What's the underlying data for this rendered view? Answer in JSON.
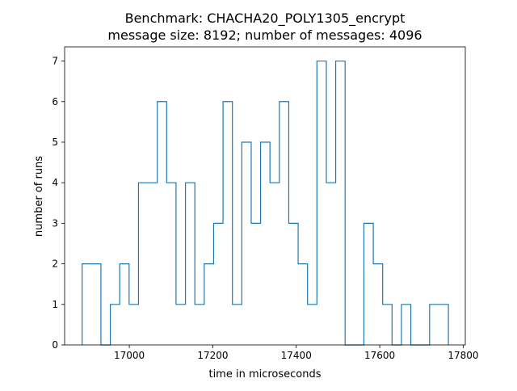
{
  "chart_data": {
    "type": "histogram-step",
    "title_line1": "Benchmark: CHACHA20_POLY1305_encrypt",
    "title_line2": "message size: 8192; number of messages: 4096",
    "xlabel": "time in microseconds",
    "ylabel": "number of runs",
    "xlim": [
      16845,
      17805
    ],
    "ylim": [
      0,
      7.35
    ],
    "xticks": [
      17000,
      17200,
      17400,
      17600,
      17800
    ],
    "yticks": [
      0,
      1,
      2,
      3,
      4,
      5,
      6,
      7
    ],
    "bin_edges": [
      16887,
      16909.5,
      16932,
      16954.5,
      16977,
      16999.5,
      17022,
      17044.5,
      17067,
      17089.5,
      17112,
      17134.5,
      17157,
      17179.5,
      17202,
      17224.5,
      17247,
      17269.5,
      17292,
      17314.5,
      17337,
      17359.5,
      17382,
      17404.5,
      17427,
      17449.5,
      17472,
      17494.5,
      17517,
      17539.5,
      17562,
      17584.5,
      17607,
      17629.5,
      17652,
      17674.5,
      17697,
      17719.5,
      17742,
      17764.5
    ],
    "counts": [
      2,
      2,
      0,
      1,
      2,
      1,
      4,
      4,
      6,
      4,
      1,
      4,
      1,
      2,
      3,
      6,
      1,
      5,
      3,
      5,
      4,
      6,
      3,
      2,
      1,
      7,
      4,
      7,
      0,
      0,
      3,
      2,
      1,
      0,
      1,
      0,
      0,
      1,
      1
    ],
    "colors": {
      "line": "#1f77b4",
      "axes": "#000000"
    }
  }
}
